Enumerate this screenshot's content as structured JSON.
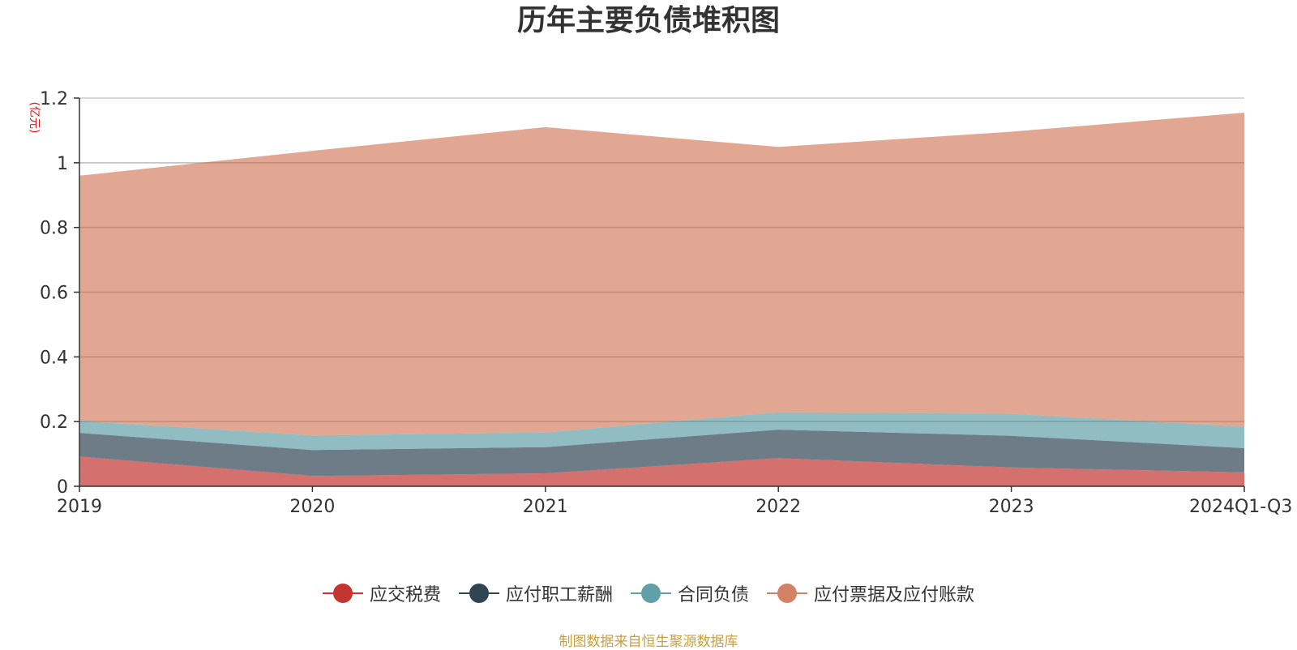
{
  "chart_data": {
    "type": "area",
    "stacked": true,
    "title": "历年主要负债堆积图",
    "ylabel": "(亿元)",
    "xlabel": "",
    "categories": [
      "2019",
      "2020",
      "2021",
      "2022",
      "2023",
      "2024Q1-Q3"
    ],
    "ylim": [
      0,
      1.2
    ],
    "yticks": [
      0,
      0.2,
      0.4,
      0.6,
      0.8,
      1,
      1.2
    ],
    "ytick_labels": [
      "0",
      "0.2",
      "0.4",
      "0.6",
      "0.8",
      "1",
      "1.2"
    ],
    "grid": true,
    "legend_position": "bottom-center",
    "series": [
      {
        "name": "应交税费",
        "values": [
          0.092,
          0.032,
          0.04,
          0.087,
          0.058,
          0.043
        ],
        "color": "#c23531"
      },
      {
        "name": "应付职工薪酬",
        "values": [
          0.073,
          0.08,
          0.081,
          0.088,
          0.098,
          0.075
        ],
        "color": "#2f4554"
      },
      {
        "name": "合同负债",
        "values": [
          0.037,
          0.045,
          0.045,
          0.054,
          0.068,
          0.066
        ],
        "color": "#61a0a8"
      },
      {
        "name": "应付票据及应付账款",
        "values": [
          0.758,
          0.88,
          0.944,
          0.82,
          0.872,
          0.971
        ],
        "color": "#d48265"
      }
    ]
  },
  "source_text": "制图数据来自恒生聚源数据库"
}
